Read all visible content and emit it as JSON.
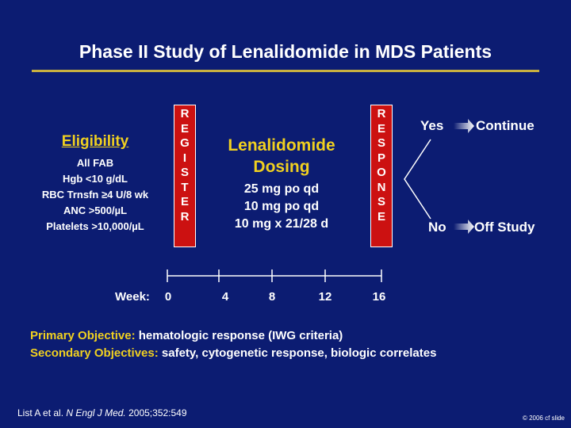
{
  "slide": {
    "title": "Phase II Study of Lenalidomide in MDS Patients"
  },
  "eligibility": {
    "heading": "Eligibility",
    "items": [
      "All FAB",
      "Hgb <10 g/dL",
      "RBC Trnsfn ≥4 U/8 wk",
      "ANC >500/µL",
      "Platelets >10,000/µL"
    ]
  },
  "register_box": {
    "letters": [
      "R",
      "E",
      "G",
      "I",
      "S",
      "T",
      "E",
      "R"
    ]
  },
  "dosing": {
    "heading_line1": "Lenalidomide",
    "heading_line2": "Dosing",
    "regimens": [
      "25 mg po qd",
      "10 mg po qd",
      "10 mg x 21/28 d"
    ]
  },
  "response_box": {
    "letters": [
      "R",
      "E",
      "S",
      "P",
      "O",
      "N",
      "S",
      "E"
    ]
  },
  "outcomes": {
    "yes": {
      "label": "Yes",
      "result": "Continue"
    },
    "no": {
      "label": "No",
      "result": "Off Study"
    }
  },
  "timeline": {
    "label": "Week:",
    "weeks": [
      "0",
      "4",
      "8",
      "12",
      "16"
    ]
  },
  "objectives": {
    "primary_label": "Primary Objective:",
    "primary_text": "hematologic response (IWG criteria)",
    "secondary_label": "Secondary Objectives:",
    "secondary_text": "safety, cytogenetic response, biologic correlates"
  },
  "citation": {
    "authors": "List A et al.",
    "journal": "N Engl J Med.",
    "details": "2005;352:549"
  },
  "copyright": "© 2006 cf slide",
  "colors": {
    "background": "#0c1c72",
    "accent_yellow": "#f0d020",
    "box_red": "#cc1111"
  }
}
